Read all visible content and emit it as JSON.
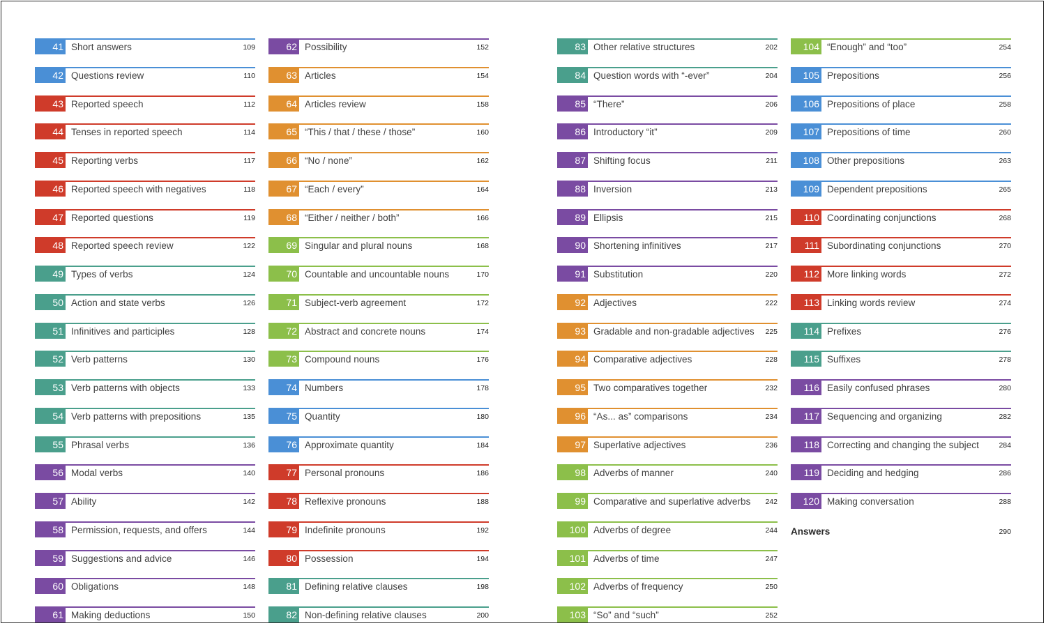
{
  "colors": {
    "blue": "#4a8fd6",
    "red": "#cf3b2a",
    "teal": "#4a9f8c",
    "purple": "#7a4ba2",
    "orange": "#e09030",
    "green": "#8cbf4a"
  },
  "columns": [
    [
      {
        "num": "41",
        "title": "Short answers",
        "page": "109",
        "color": "#4a8fd6"
      },
      {
        "num": "42",
        "title": "Questions review",
        "page": "110",
        "color": "#4a8fd6"
      },
      {
        "num": "43",
        "title": "Reported speech",
        "page": "112",
        "color": "#cf3b2a"
      },
      {
        "num": "44",
        "title": "Tenses in reported speech",
        "page": "114",
        "color": "#cf3b2a"
      },
      {
        "num": "45",
        "title": "Reporting verbs",
        "page": "117",
        "color": "#cf3b2a"
      },
      {
        "num": "46",
        "title": "Reported speech with negatives",
        "page": "118",
        "color": "#cf3b2a"
      },
      {
        "num": "47",
        "title": "Reported questions",
        "page": "119",
        "color": "#cf3b2a"
      },
      {
        "num": "48",
        "title": "Reported speech review",
        "page": "122",
        "color": "#cf3b2a"
      },
      {
        "num": "49",
        "title": "Types of verbs",
        "page": "124",
        "color": "#4a9f8c"
      },
      {
        "num": "50",
        "title": "Action and state verbs",
        "page": "126",
        "color": "#4a9f8c"
      },
      {
        "num": "51",
        "title": "Infinitives and participles",
        "page": "128",
        "color": "#4a9f8c"
      },
      {
        "num": "52",
        "title": "Verb patterns",
        "page": "130",
        "color": "#4a9f8c"
      },
      {
        "num": "53",
        "title": "Verb patterns with objects",
        "page": "133",
        "color": "#4a9f8c"
      },
      {
        "num": "54",
        "title": "Verb patterns with prepositions",
        "page": "135",
        "color": "#4a9f8c"
      },
      {
        "num": "55",
        "title": "Phrasal verbs",
        "page": "136",
        "color": "#4a9f8c"
      },
      {
        "num": "56",
        "title": "Modal verbs",
        "page": "140",
        "color": "#7a4ba2"
      },
      {
        "num": "57",
        "title": "Ability",
        "page": "142",
        "color": "#7a4ba2"
      },
      {
        "num": "58",
        "title": "Permission, requests, and offers",
        "page": "144",
        "color": "#7a4ba2"
      },
      {
        "num": "59",
        "title": "Suggestions and advice",
        "page": "146",
        "color": "#7a4ba2"
      },
      {
        "num": "60",
        "title": "Obligations",
        "page": "148",
        "color": "#7a4ba2"
      },
      {
        "num": "61",
        "title": "Making deductions",
        "page": "150",
        "color": "#7a4ba2"
      }
    ],
    [
      {
        "num": "62",
        "title": "Possibility",
        "page": "152",
        "color": "#7a4ba2"
      },
      {
        "num": "63",
        "title": "Articles",
        "page": "154",
        "color": "#e09030"
      },
      {
        "num": "64",
        "title": "Articles review",
        "page": "158",
        "color": "#e09030"
      },
      {
        "num": "65",
        "title": "“This / that / these / those”",
        "page": "160",
        "color": "#e09030"
      },
      {
        "num": "66",
        "title": "“No / none”",
        "page": "162",
        "color": "#e09030"
      },
      {
        "num": "67",
        "title": "“Each / every”",
        "page": "164",
        "color": "#e09030"
      },
      {
        "num": "68",
        "title": "“Either / neither / both”",
        "page": "166",
        "color": "#e09030"
      },
      {
        "num": "69",
        "title": "Singular and plural nouns",
        "page": "168",
        "color": "#8cbf4a"
      },
      {
        "num": "70",
        "title": "Countable and uncountable nouns",
        "page": "170",
        "color": "#8cbf4a"
      },
      {
        "num": "71",
        "title": "Subject-verb agreement",
        "page": "172",
        "color": "#8cbf4a"
      },
      {
        "num": "72",
        "title": "Abstract and concrete nouns",
        "page": "174",
        "color": "#8cbf4a"
      },
      {
        "num": "73",
        "title": "Compound nouns",
        "page": "176",
        "color": "#8cbf4a"
      },
      {
        "num": "74",
        "title": "Numbers",
        "page": "178",
        "color": "#4a8fd6"
      },
      {
        "num": "75",
        "title": "Quantity",
        "page": "180",
        "color": "#4a8fd6"
      },
      {
        "num": "76",
        "title": "Approximate quantity",
        "page": "184",
        "color": "#4a8fd6"
      },
      {
        "num": "77",
        "title": "Personal pronouns",
        "page": "186",
        "color": "#cf3b2a"
      },
      {
        "num": "78",
        "title": "Reflexive pronouns",
        "page": "188",
        "color": "#cf3b2a"
      },
      {
        "num": "79",
        "title": "Indefinite pronouns",
        "page": "192",
        "color": "#cf3b2a"
      },
      {
        "num": "80",
        "title": "Possession",
        "page": "194",
        "color": "#cf3b2a"
      },
      {
        "num": "81",
        "title": "Defining relative clauses",
        "page": "198",
        "color": "#4a9f8c"
      },
      {
        "num": "82",
        "title": "Non-defining relative clauses",
        "page": "200",
        "color": "#4a9f8c"
      }
    ],
    [
      {
        "num": "83",
        "title": "Other relative structures",
        "page": "202",
        "color": "#4a9f8c"
      },
      {
        "num": "84",
        "title": "Question words with “-ever”",
        "page": "204",
        "color": "#4a9f8c"
      },
      {
        "num": "85",
        "title": "“There”",
        "page": "206",
        "color": "#7a4ba2"
      },
      {
        "num": "86",
        "title": "Introductory “it”",
        "page": "209",
        "color": "#7a4ba2"
      },
      {
        "num": "87",
        "title": "Shifting focus",
        "page": "211",
        "color": "#7a4ba2"
      },
      {
        "num": "88",
        "title": "Inversion",
        "page": "213",
        "color": "#7a4ba2"
      },
      {
        "num": "89",
        "title": "Ellipsis",
        "page": "215",
        "color": "#7a4ba2"
      },
      {
        "num": "90",
        "title": "Shortening infinitives",
        "page": "217",
        "color": "#7a4ba2"
      },
      {
        "num": "91",
        "title": "Substitution",
        "page": "220",
        "color": "#7a4ba2"
      },
      {
        "num": "92",
        "title": "Adjectives",
        "page": "222",
        "color": "#e09030"
      },
      {
        "num": "93",
        "title": "Gradable and non-gradable adjectives",
        "page": "225",
        "color": "#e09030"
      },
      {
        "num": "94",
        "title": "Comparative adjectives",
        "page": "228",
        "color": "#e09030"
      },
      {
        "num": "95",
        "title": "Two comparatives together",
        "page": "232",
        "color": "#e09030"
      },
      {
        "num": "96",
        "title": "“As... as” comparisons",
        "page": "234",
        "color": "#e09030"
      },
      {
        "num": "97",
        "title": "Superlative adjectives",
        "page": "236",
        "color": "#e09030"
      },
      {
        "num": "98",
        "title": "Adverbs of manner",
        "page": "240",
        "color": "#8cbf4a"
      },
      {
        "num": "99",
        "title": "Comparative and superlative adverbs",
        "page": "242",
        "color": "#8cbf4a"
      },
      {
        "num": "100",
        "title": "Adverbs of degree",
        "page": "244",
        "color": "#8cbf4a"
      },
      {
        "num": "101",
        "title": "Adverbs of time",
        "page": "247",
        "color": "#8cbf4a"
      },
      {
        "num": "102",
        "title": "Adverbs of frequency",
        "page": "250",
        "color": "#8cbf4a"
      },
      {
        "num": "103",
        "title": "“So” and “such”",
        "page": "252",
        "color": "#8cbf4a"
      }
    ],
    [
      {
        "num": "104",
        "title": "“Enough” and “too”",
        "page": "254",
        "color": "#8cbf4a"
      },
      {
        "num": "105",
        "title": "Prepositions",
        "page": "256",
        "color": "#4a8fd6"
      },
      {
        "num": "106",
        "title": "Prepositions of place",
        "page": "258",
        "color": "#4a8fd6"
      },
      {
        "num": "107",
        "title": "Prepositions of time",
        "page": "260",
        "color": "#4a8fd6"
      },
      {
        "num": "108",
        "title": "Other prepositions",
        "page": "263",
        "color": "#4a8fd6"
      },
      {
        "num": "109",
        "title": "Dependent prepositions",
        "page": "265",
        "color": "#4a8fd6"
      },
      {
        "num": "110",
        "title": "Coordinating conjunctions",
        "page": "268",
        "color": "#cf3b2a"
      },
      {
        "num": "111",
        "title": "Subordinating conjunctions",
        "page": "270",
        "color": "#cf3b2a"
      },
      {
        "num": "112",
        "title": "More linking words",
        "page": "272",
        "color": "#cf3b2a"
      },
      {
        "num": "113",
        "title": "Linking words review",
        "page": "274",
        "color": "#cf3b2a"
      },
      {
        "num": "114",
        "title": "Prefixes",
        "page": "276",
        "color": "#4a9f8c"
      },
      {
        "num": "115",
        "title": "Suffixes",
        "page": "278",
        "color": "#4a9f8c"
      },
      {
        "num": "116",
        "title": "Easily confused phrases",
        "page": "280",
        "color": "#7a4ba2"
      },
      {
        "num": "117",
        "title": "Sequencing and organizing",
        "page": "282",
        "color": "#7a4ba2"
      },
      {
        "num": "118",
        "title": "Correcting and changing the subject",
        "page": "284",
        "color": "#7a4ba2"
      },
      {
        "num": "119",
        "title": "Deciding and hedging",
        "page": "286",
        "color": "#7a4ba2"
      },
      {
        "num": "120",
        "title": "Making conversation",
        "page": "288",
        "color": "#7a4ba2"
      }
    ]
  ],
  "answers": {
    "label": "Answers",
    "page": "290"
  }
}
